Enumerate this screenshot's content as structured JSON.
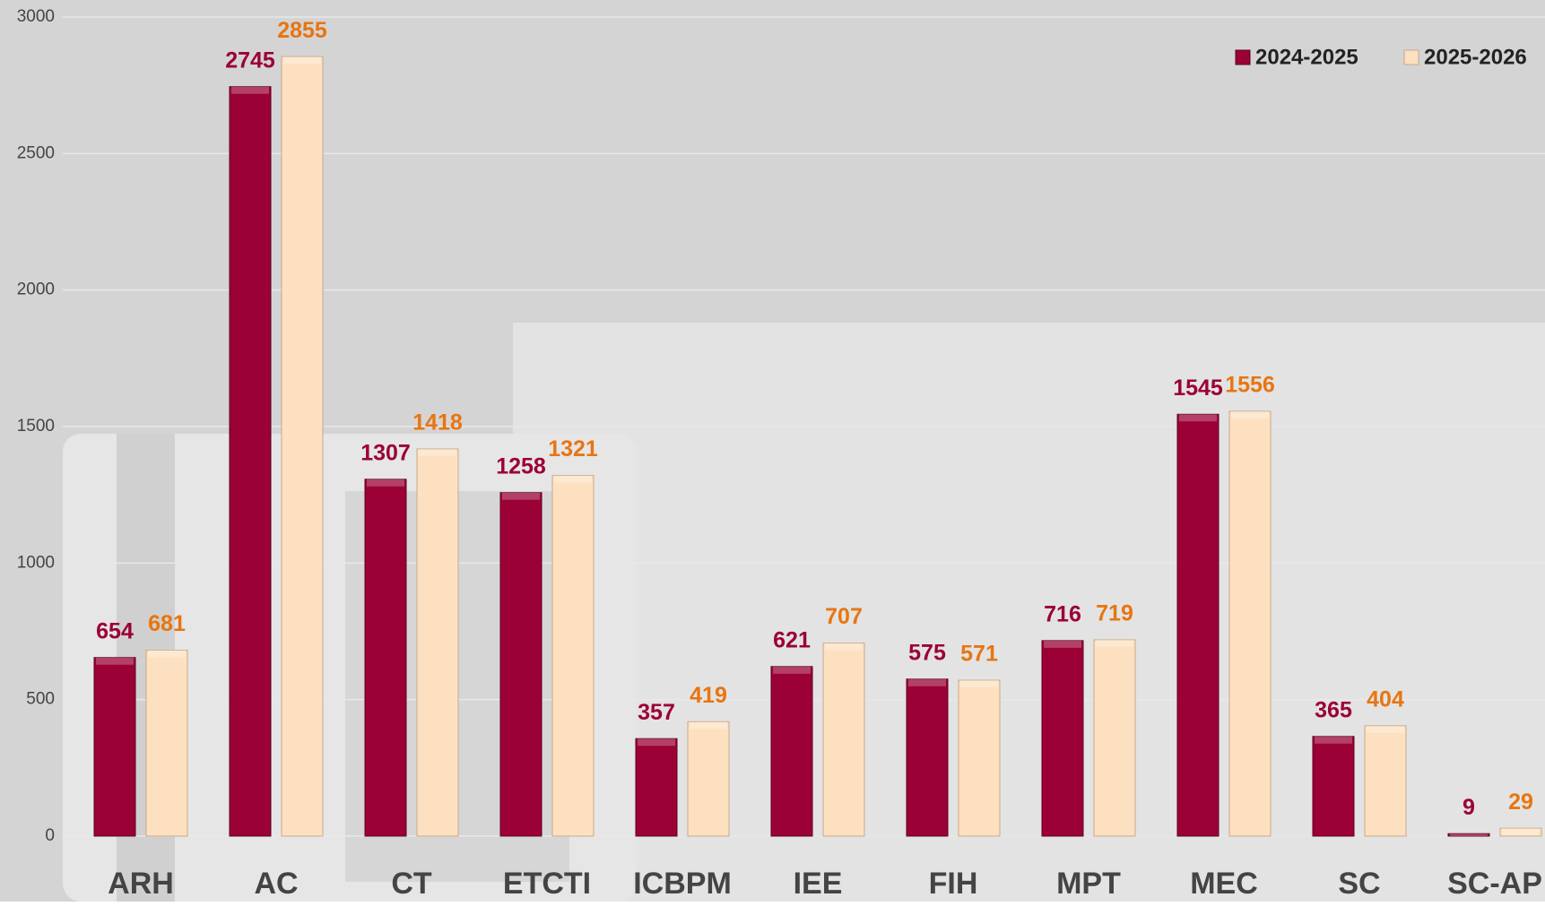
{
  "chart_data": {
    "type": "bar",
    "categories": [
      "ARH",
      "AC",
      "CT",
      "ETCTI",
      "ICBPM",
      "IEE",
      "FIH",
      "MPT",
      "MEC",
      "SC",
      "SC-AP"
    ],
    "series": [
      {
        "name": "2024-2025",
        "color": "#9b0036",
        "label_color": "#9b0036",
        "values": [
          654,
          2745,
          1307,
          1258,
          357,
          621,
          575,
          716,
          1545,
          365,
          9
        ]
      },
      {
        "name": "2025-2026",
        "color": "#fde0c0",
        "label_color": "#e87511",
        "values": [
          681,
          2855,
          1418,
          1321,
          419,
          707,
          571,
          719,
          1556,
          404,
          29
        ]
      }
    ],
    "ylim": [
      0,
      3000
    ],
    "yticks": [
      0,
      500,
      1000,
      1500,
      2000,
      2500,
      3000
    ],
    "grid": true,
    "legend": "top-right"
  }
}
